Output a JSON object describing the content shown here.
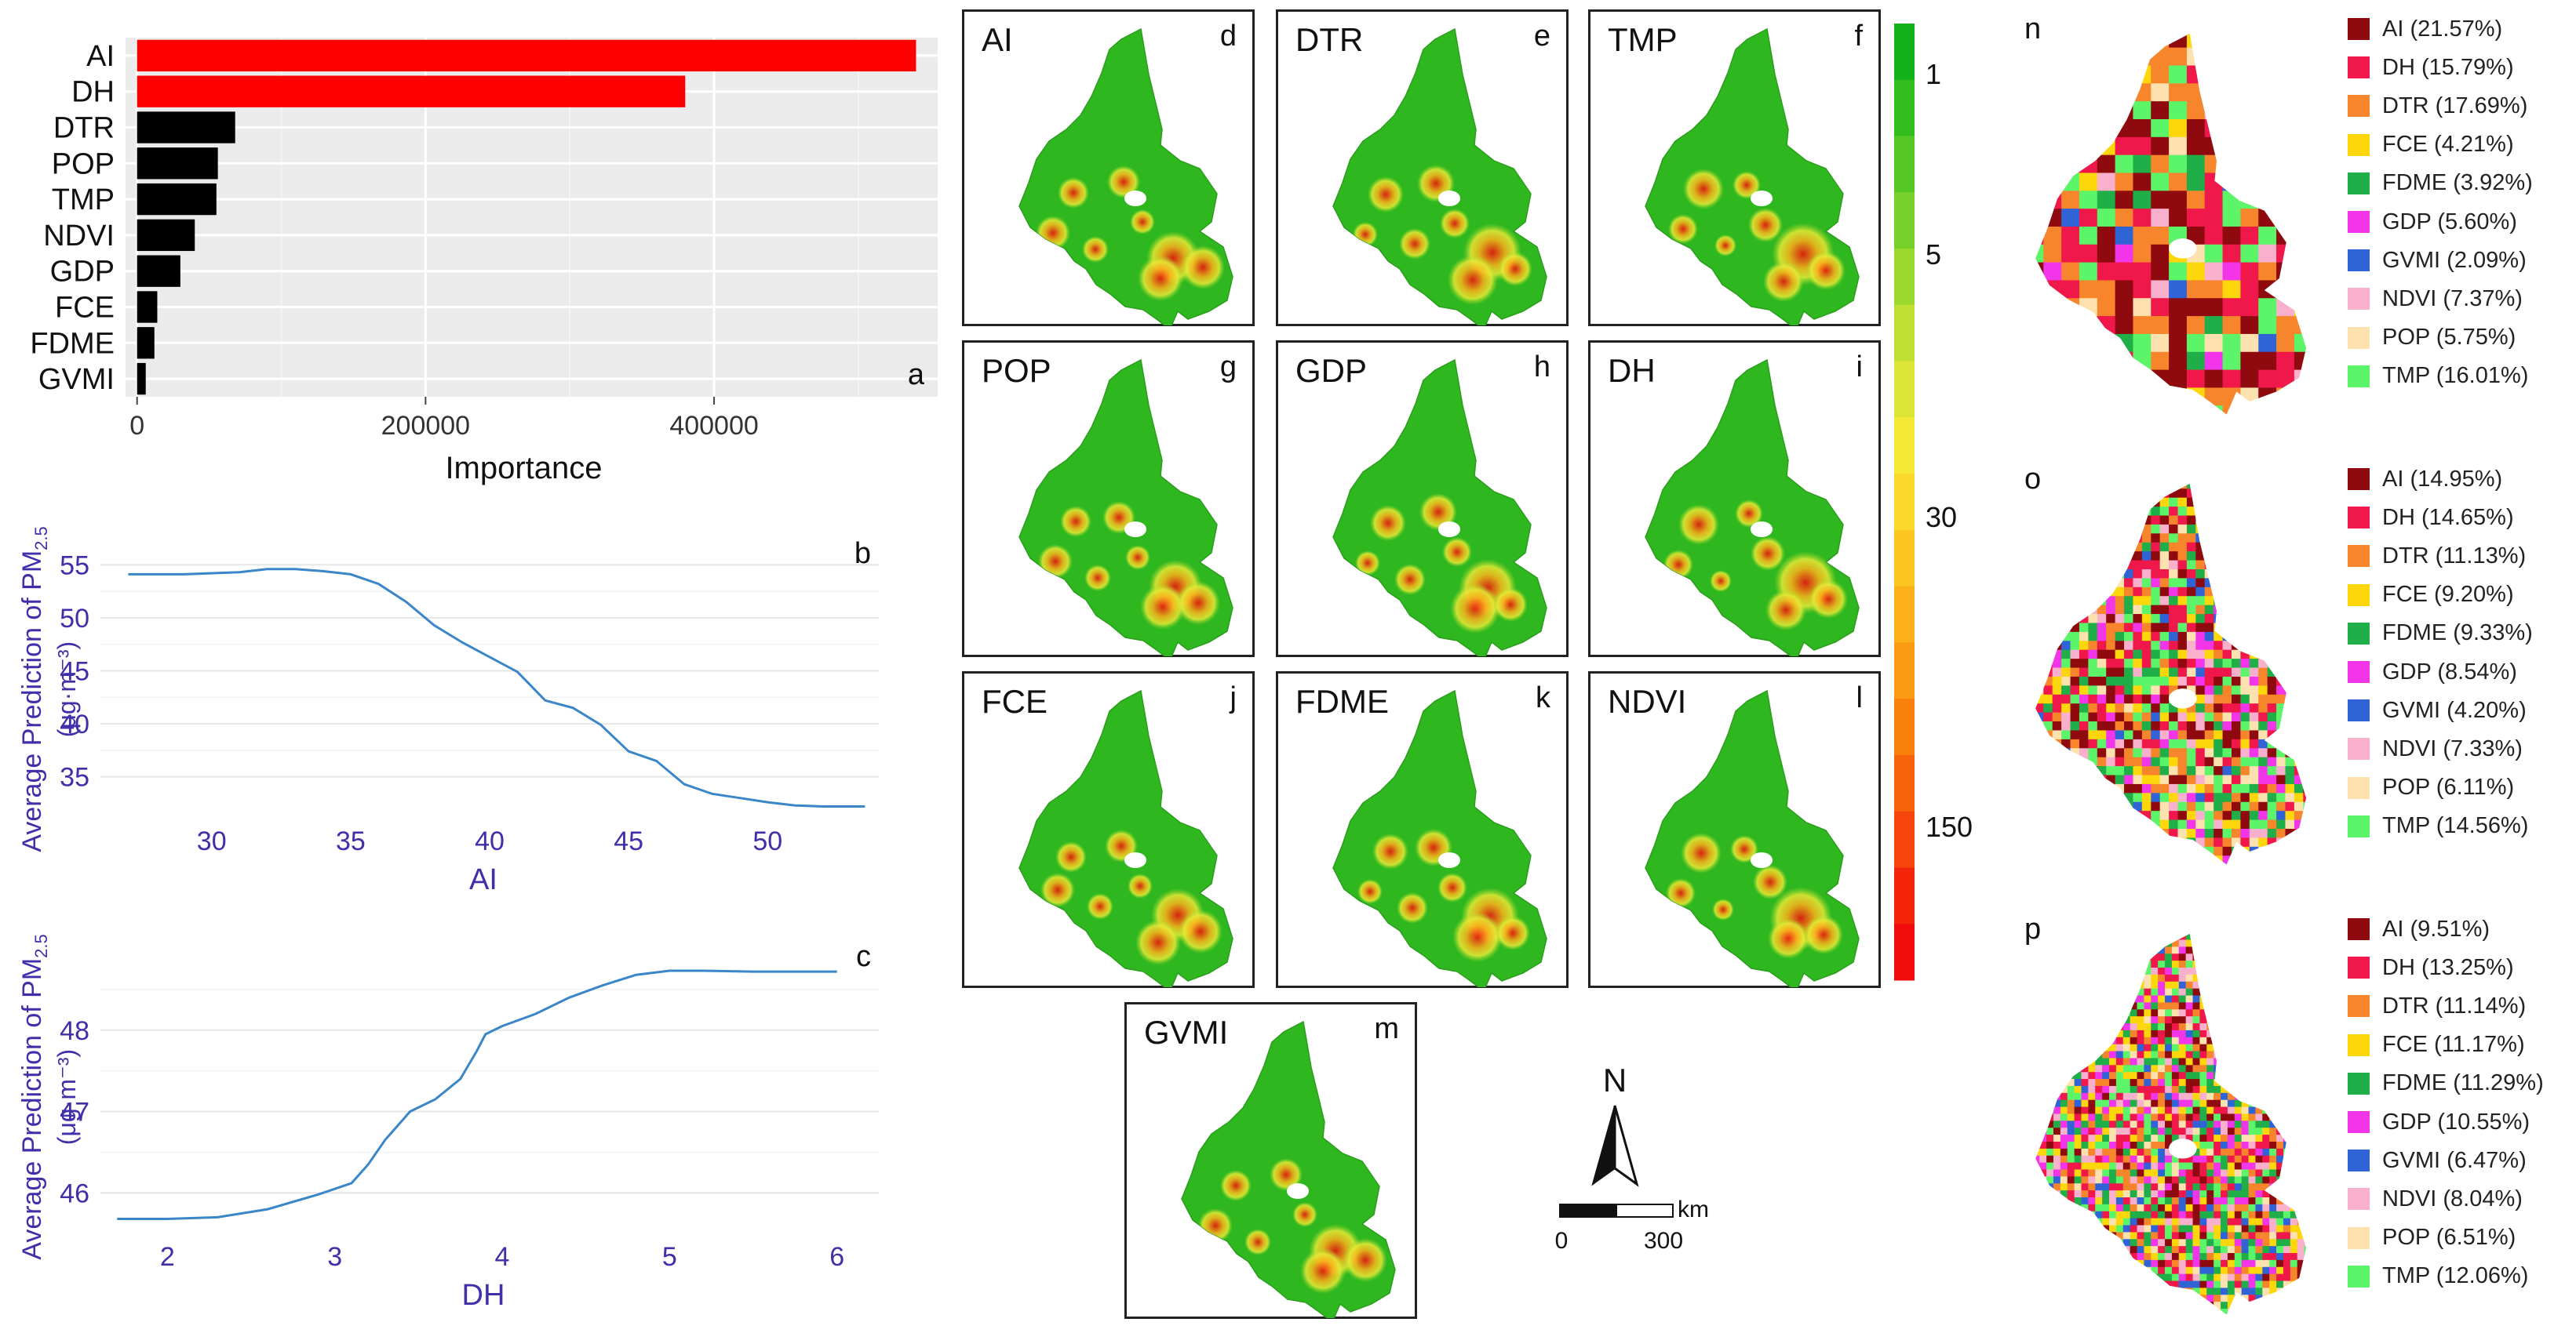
{
  "chart_data": [
    {
      "id": "a",
      "type": "bar",
      "orientation": "horizontal",
      "panel_letter": "a",
      "categories": [
        "AI",
        "DH",
        "DTR",
        "POP",
        "TMP",
        "NDVI",
        "GDP",
        "FCE",
        "FDME",
        "GVMI"
      ],
      "values": [
        540000,
        380000,
        68000,
        56000,
        55000,
        40000,
        30000,
        14000,
        12000,
        6000
      ],
      "highlight_count": 2,
      "xlabel": "Importance",
      "xticks": [
        "0",
        "200000",
        "400000"
      ],
      "xtick_values": [
        0,
        200000,
        400000
      ],
      "xlim": [
        -8000,
        555000
      ]
    },
    {
      "id": "b",
      "type": "line",
      "panel_letter": "b",
      "x": [
        27,
        29,
        31,
        32,
        33,
        34,
        35,
        36,
        37,
        38,
        39,
        40,
        41,
        42,
        43,
        44,
        45,
        46,
        47,
        48,
        49,
        50,
        51,
        52,
        53.5
      ],
      "y": [
        54.1,
        54.1,
        54.3,
        54.6,
        54.6,
        54.4,
        54.1,
        53.2,
        51.5,
        49.3,
        47.7,
        46.3,
        44.9,
        42.2,
        41.5,
        39.9,
        37.4,
        36.5,
        34.3,
        33.4,
        33.0,
        32.6,
        32.3,
        32.2,
        32.2
      ],
      "xlabel": "AI",
      "ylabel_line1": "Average Prediction of PM",
      "ylabel_sub": "2.5",
      "ylabel_line2": "(μg·m⁻³)",
      "xticks": [
        "30",
        "35",
        "40",
        "45",
        "50"
      ],
      "xtick_values": [
        30,
        35,
        40,
        45,
        50
      ],
      "yticks": [
        "35",
        "40",
        "45",
        "50",
        "55"
      ],
      "ytick_values": [
        35,
        40,
        45,
        50,
        55
      ],
      "xlim": [
        26,
        54
      ],
      "ylim": [
        31.5,
        56.5
      ]
    },
    {
      "id": "c",
      "type": "line",
      "panel_letter": "c",
      "x": [
        1.7,
        2.0,
        2.3,
        2.6,
        2.9,
        3.1,
        3.2,
        3.3,
        3.45,
        3.6,
        3.75,
        3.85,
        3.9,
        4.0,
        4.2,
        4.4,
        4.6,
        4.8,
        5.0,
        5.2,
        5.5,
        5.8,
        6.0
      ],
      "y": [
        45.68,
        45.68,
        45.7,
        45.8,
        45.98,
        46.12,
        46.35,
        46.65,
        47.0,
        47.15,
        47.4,
        47.75,
        47.95,
        48.05,
        48.2,
        48.4,
        48.55,
        48.68,
        48.73,
        48.73,
        48.72,
        48.72,
        48.72
      ],
      "xlabel": "DH",
      "ylabel_line1": "Average Prediction of PM",
      "ylabel_sub": "2.5",
      "ylabel_line2": "(μg·m⁻³)",
      "xticks": [
        "2",
        "3",
        "4",
        "5",
        "6"
      ],
      "xtick_values": [
        2,
        3,
        4,
        5,
        6
      ],
      "yticks": [
        "46",
        "47",
        "48"
      ],
      "ytick_values": [
        46,
        47,
        48
      ],
      "xlim": [
        1.6,
        6.25
      ],
      "ylim": [
        45.55,
        49.0
      ]
    },
    {
      "id": "colorbar",
      "type": "colorbar",
      "tick_labels": [
        "1",
        "5",
        "30",
        "150"
      ],
      "colors": [
        "#14b21a",
        "#33be1f",
        "#55c825",
        "#78d12b",
        "#9cd92f",
        "#bfe033",
        "#dde636",
        "#f4e836",
        "#fbd82c",
        "#fcc522",
        "#fcb11a",
        "#fb9a13",
        "#fa800e",
        "#f8640c",
        "#f6450b",
        "#f4240b",
        "#f20b0b"
      ]
    },
    {
      "id": "pie-legends",
      "type": "table",
      "categories": [
        "AI",
        "DH",
        "DTR",
        "FCE",
        "FDME",
        "GDP",
        "GVMI",
        "NDVI",
        "POP",
        "TMP"
      ],
      "colors": [
        "#8e0a0f",
        "#f0184a",
        "#f7852b",
        "#fdd60b",
        "#1fae47",
        "#f235e8",
        "#2f63d6",
        "#f9b0cc",
        "#fde2b0",
        "#5cf56a"
      ],
      "panels": [
        {
          "letter": "n",
          "percentages": [
            "21.57%",
            "15.79%",
            "17.69%",
            "4.21%",
            "3.92%",
            "5.60%",
            "2.09%",
            "7.37%",
            "5.75%",
            "16.01%"
          ]
        },
        {
          "letter": "o",
          "percentages": [
            "14.95%",
            "14.65%",
            "11.13%",
            "9.20%",
            "9.33%",
            "8.54%",
            "4.20%",
            "7.33%",
            "6.11%",
            "14.56%"
          ]
        },
        {
          "letter": "p",
          "percentages": [
            "9.51%",
            "13.25%",
            "11.14%",
            "11.17%",
            "11.29%",
            "10.55%",
            "6.47%",
            "8.04%",
            "6.51%",
            "12.06%"
          ]
        }
      ]
    }
  ],
  "maps": [
    {
      "title": "AI",
      "letter": "d"
    },
    {
      "title": "DTR",
      "letter": "e"
    },
    {
      "title": "TMP",
      "letter": "f"
    },
    {
      "title": "POP",
      "letter": "g"
    },
    {
      "title": "GDP",
      "letter": "h"
    },
    {
      "title": "DH",
      "letter": "i"
    },
    {
      "title": "FCE",
      "letter": "j"
    },
    {
      "title": "FDME",
      "letter": "k"
    },
    {
      "title": "NDVI",
      "letter": "l"
    },
    {
      "title": "GVMI",
      "letter": "m"
    }
  ],
  "scalebar": {
    "north": "N",
    "unit": "km",
    "start": "0",
    "end": "300"
  }
}
